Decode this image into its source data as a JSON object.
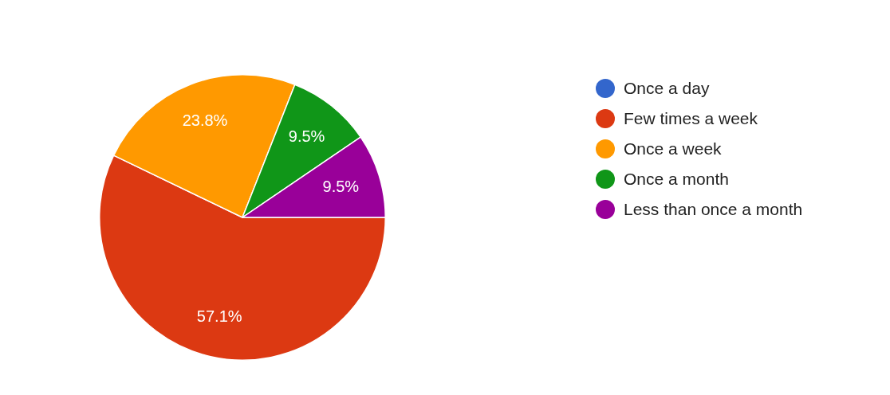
{
  "chart_data": {
    "type": "pie",
    "categories": [
      "Once a day",
      "Few times a week",
      "Once a week",
      "Once a month",
      "Less than once a month"
    ],
    "values": [
      0,
      57.1,
      23.8,
      9.5,
      9.5
    ],
    "colors": [
      "#3366cc",
      "#dc3912",
      "#ff9900",
      "#109618",
      "#990099"
    ],
    "value_labels": [
      null,
      "57.1%",
      "23.8%",
      "9.5%",
      "9.5%"
    ],
    "legend": "right"
  }
}
